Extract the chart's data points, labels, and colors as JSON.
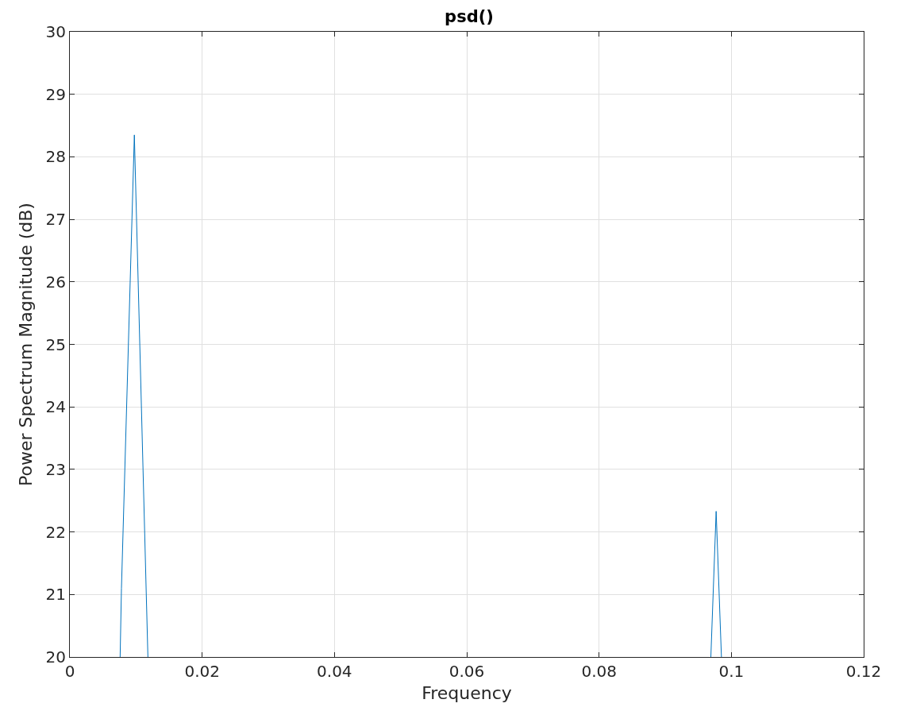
{
  "chart_data": {
    "type": "line",
    "title": "psd()",
    "xlabel": "Frequency",
    "ylabel": "Power Spectrum Magnitude (dB)",
    "x": [
      0.0076,
      0.0078,
      0.00975,
      0.0118,
      0.0119,
      0.0969,
      0.0977,
      0.0985
    ],
    "series": [
      {
        "color": "#0072bd",
        "values": [
          20,
          21.1,
          28.35,
          20,
          null,
          20,
          22.33,
          20
        ]
      }
    ],
    "xlim": [
      0,
      0.12
    ],
    "xticks": [
      0,
      0.02,
      0.04,
      0.06,
      0.08,
      0.1,
      0.12
    ],
    "ylim": [
      20,
      30
    ],
    "yticks": [
      20,
      21,
      22,
      23,
      24,
      25,
      26,
      27,
      28,
      29,
      30
    ],
    "grid": true
  }
}
